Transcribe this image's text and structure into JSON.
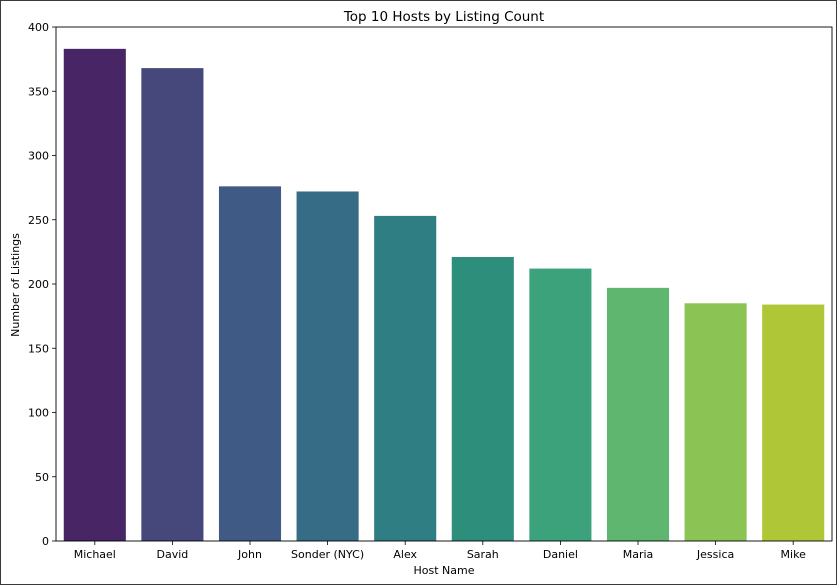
{
  "chart_data": {
    "type": "bar",
    "title": "Top 10 Hosts by Listing Count",
    "xlabel": "Host Name",
    "ylabel": "Number of Listings",
    "categories": [
      "Michael",
      "David",
      "John",
      "Sonder (NYC)",
      "Alex",
      "Sarah",
      "Daniel",
      "Maria",
      "Jessica",
      "Mike"
    ],
    "values": [
      383,
      368,
      276,
      272,
      253,
      221,
      212,
      197,
      185,
      184
    ],
    "ylim": [
      0,
      400
    ],
    "yticks": [
      0,
      50,
      100,
      150,
      200,
      250,
      300,
      350,
      400
    ],
    "grid": false,
    "legend": "none",
    "colors": [
      "#482666",
      "#46477b",
      "#3f5a84",
      "#366c85",
      "#2f7e84",
      "#2c8e7b",
      "#3ba27b",
      "#5fb66f",
      "#8bc455",
      "#afc736"
    ]
  }
}
